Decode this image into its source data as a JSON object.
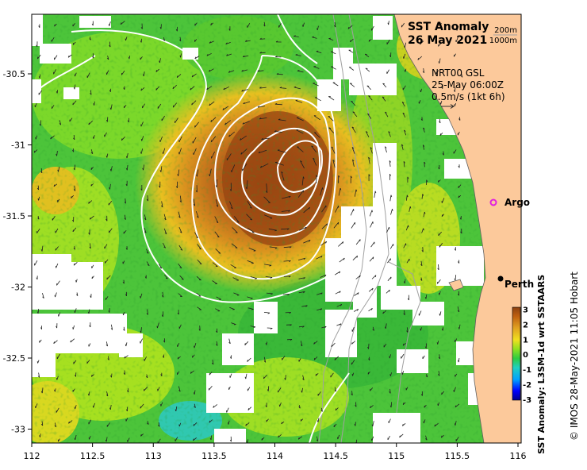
{
  "map": {
    "title": "SST Anomaly",
    "date": "26 May 2021",
    "depth_contours": [
      "200m",
      "1000m"
    ],
    "product": "NRT00 GSL",
    "current_time": "25-May 06:00Z",
    "vector_scale": "0.5m/s (1kt 6h)",
    "x_ticks": [
      "112",
      "112.5",
      "113",
      "113.5",
      "114",
      "114.5",
      "115",
      "115.5",
      "116"
    ],
    "y_ticks": [
      "-30.5",
      "-31",
      "-31.5",
      "-32",
      "-32.5",
      "-33"
    ],
    "argo_label": "Argo",
    "city_label": "Perth",
    "colors": {
      "land": "#fcc99b",
      "nodata": "#ffffff",
      "contour": "#ffffff",
      "bathymetry": "#a0a0a0",
      "argo_marker": "#e020e0"
    }
  },
  "colorbar": {
    "label": "SST Anomaly: L3SM-1d wrt SSTAARS",
    "ticks": [
      "3",
      "2",
      "1",
      "0",
      "-1",
      "-2",
      "-3"
    ],
    "range": [
      -3,
      3
    ],
    "colors": [
      "#00008b",
      "#0000ff",
      "#00a0ff",
      "#00e0e0",
      "#40e0a0",
      "#2ecc40",
      "#90e020",
      "#f0e020",
      "#e0a020",
      "#c06010",
      "#8b4010"
    ]
  },
  "credit": "© IMOS 28-May-2021 11:05 Hobart"
}
